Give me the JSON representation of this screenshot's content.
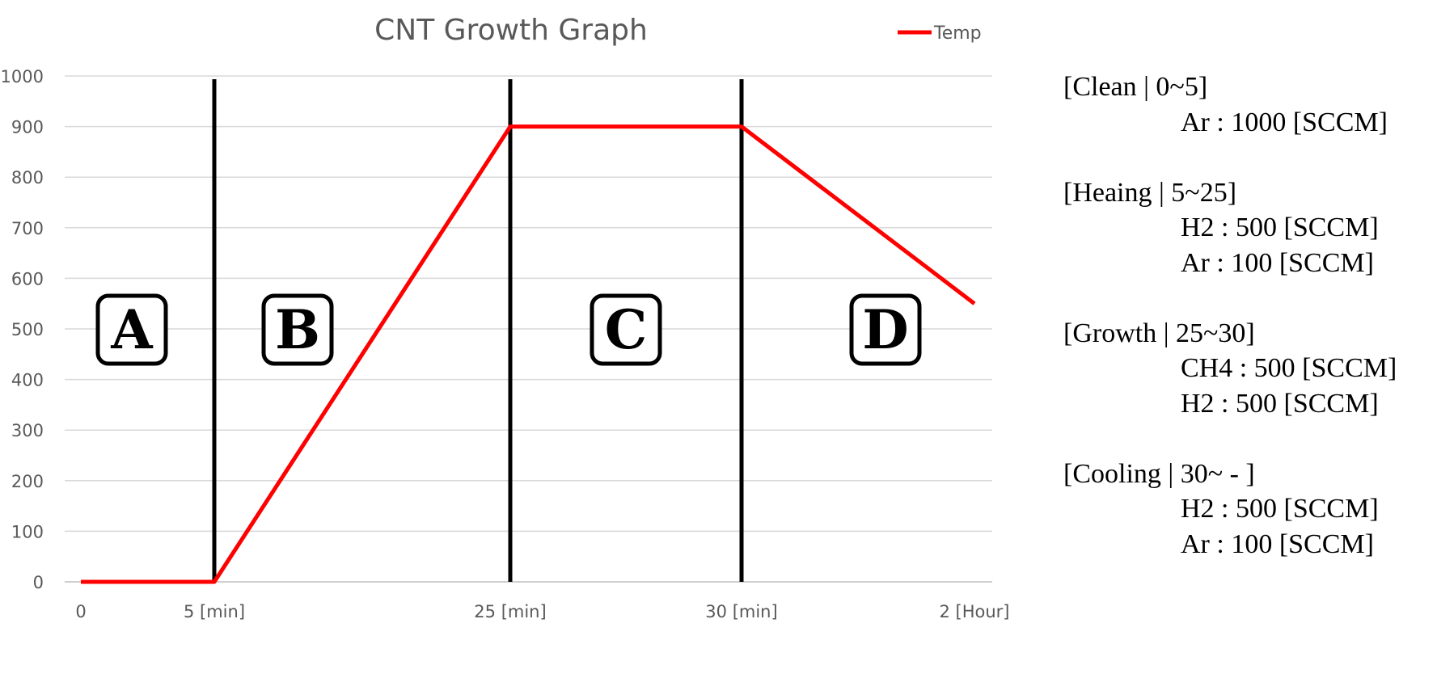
{
  "chart_data": {
    "type": "line",
    "title": "CNT Growth Graph",
    "ylim": [
      0,
      1000
    ],
    "y_ticks": [
      "0",
      "100",
      "200",
      "300",
      "400",
      "500",
      "600",
      "700",
      "800",
      "900",
      "1000"
    ],
    "x_tick_labels": [
      "0",
      "5 [min]",
      "25 [min]",
      "30 [min]",
      "2 [Hour]"
    ],
    "grid": true,
    "legend": {
      "position": "top-right"
    },
    "series": [
      {
        "name": "Temp",
        "color": "#ff0000",
        "points": [
          {
            "x": "0",
            "y": 0
          },
          {
            "x": "5 [min]",
            "y": 0
          },
          {
            "x": "25 [min]",
            "y": 900
          },
          {
            "x": "30 [min]",
            "y": 900
          },
          {
            "x": "2 [Hour]",
            "y": 550
          }
        ]
      }
    ],
    "phase_boundaries": [
      "5 [min]",
      "25 [min]",
      "30 [min]"
    ],
    "phase_labels": [
      "A",
      "B",
      "C",
      "D"
    ]
  },
  "notes": [
    {
      "heading": "[Clean | 0~5]",
      "lines": [
        "Ar : 1000 [SCCM]"
      ]
    },
    {
      "heading": "[Heaing | 5~25]",
      "lines": [
        "H2 : 500 [SCCM]",
        "Ar : 100 [SCCM]"
      ]
    },
    {
      "heading": "[Growth | 25~30]",
      "lines": [
        "CH4 : 500 [SCCM]",
        "H2 : 500 [SCCM]"
      ]
    },
    {
      "heading": "[Cooling | 30~ - ]",
      "lines": [
        "H2 : 500 [SCCM]",
        "Ar : 100 [SCCM]"
      ]
    }
  ]
}
